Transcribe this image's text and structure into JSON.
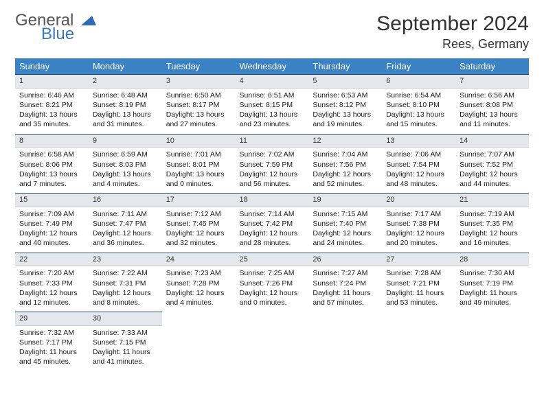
{
  "brand": {
    "part1": "General",
    "part2": "Blue",
    "part1_color": "#555555",
    "part2_color": "#3a79b7",
    "icon_color": "#2e6bb0"
  },
  "title": "September 2024",
  "location": "Rees, Germany",
  "colors": {
    "header_bg": "#3a82c4",
    "header_fg": "#ffffff",
    "daynum_bg": "#e4e8ec",
    "daynum_border_top": "#2b4a6a",
    "text": "#1a1a1a"
  },
  "weekdays": [
    "Sunday",
    "Monday",
    "Tuesday",
    "Wednesday",
    "Thursday",
    "Friday",
    "Saturday"
  ],
  "weeks": [
    [
      {
        "n": "1",
        "sr": "6:46 AM",
        "ss": "8:21 PM",
        "dh": "13",
        "dm": "35"
      },
      {
        "n": "2",
        "sr": "6:48 AM",
        "ss": "8:19 PM",
        "dh": "13",
        "dm": "31"
      },
      {
        "n": "3",
        "sr": "6:50 AM",
        "ss": "8:17 PM",
        "dh": "13",
        "dm": "27"
      },
      {
        "n": "4",
        "sr": "6:51 AM",
        "ss": "8:15 PM",
        "dh": "13",
        "dm": "23"
      },
      {
        "n": "5",
        "sr": "6:53 AM",
        "ss": "8:12 PM",
        "dh": "13",
        "dm": "19"
      },
      {
        "n": "6",
        "sr": "6:54 AM",
        "ss": "8:10 PM",
        "dh": "13",
        "dm": "15"
      },
      {
        "n": "7",
        "sr": "6:56 AM",
        "ss": "8:08 PM",
        "dh": "13",
        "dm": "11"
      }
    ],
    [
      {
        "n": "8",
        "sr": "6:58 AM",
        "ss": "8:06 PM",
        "dh": "13",
        "dm": "7"
      },
      {
        "n": "9",
        "sr": "6:59 AM",
        "ss": "8:03 PM",
        "dh": "13",
        "dm": "4"
      },
      {
        "n": "10",
        "sr": "7:01 AM",
        "ss": "8:01 PM",
        "dh": "13",
        "dm": "0"
      },
      {
        "n": "11",
        "sr": "7:02 AM",
        "ss": "7:59 PM",
        "dh": "12",
        "dm": "56"
      },
      {
        "n": "12",
        "sr": "7:04 AM",
        "ss": "7:56 PM",
        "dh": "12",
        "dm": "52"
      },
      {
        "n": "13",
        "sr": "7:06 AM",
        "ss": "7:54 PM",
        "dh": "12",
        "dm": "48"
      },
      {
        "n": "14",
        "sr": "7:07 AM",
        "ss": "7:52 PM",
        "dh": "12",
        "dm": "44"
      }
    ],
    [
      {
        "n": "15",
        "sr": "7:09 AM",
        "ss": "7:49 PM",
        "dh": "12",
        "dm": "40"
      },
      {
        "n": "16",
        "sr": "7:11 AM",
        "ss": "7:47 PM",
        "dh": "12",
        "dm": "36"
      },
      {
        "n": "17",
        "sr": "7:12 AM",
        "ss": "7:45 PM",
        "dh": "12",
        "dm": "32"
      },
      {
        "n": "18",
        "sr": "7:14 AM",
        "ss": "7:42 PM",
        "dh": "12",
        "dm": "28"
      },
      {
        "n": "19",
        "sr": "7:15 AM",
        "ss": "7:40 PM",
        "dh": "12",
        "dm": "24"
      },
      {
        "n": "20",
        "sr": "7:17 AM",
        "ss": "7:38 PM",
        "dh": "12",
        "dm": "20"
      },
      {
        "n": "21",
        "sr": "7:19 AM",
        "ss": "7:35 PM",
        "dh": "12",
        "dm": "16"
      }
    ],
    [
      {
        "n": "22",
        "sr": "7:20 AM",
        "ss": "7:33 PM",
        "dh": "12",
        "dm": "12"
      },
      {
        "n": "23",
        "sr": "7:22 AM",
        "ss": "7:31 PM",
        "dh": "12",
        "dm": "8"
      },
      {
        "n": "24",
        "sr": "7:23 AM",
        "ss": "7:28 PM",
        "dh": "12",
        "dm": "4"
      },
      {
        "n": "25",
        "sr": "7:25 AM",
        "ss": "7:26 PM",
        "dh": "12",
        "dm": "0"
      },
      {
        "n": "26",
        "sr": "7:27 AM",
        "ss": "7:24 PM",
        "dh": "11",
        "dm": "57"
      },
      {
        "n": "27",
        "sr": "7:28 AM",
        "ss": "7:21 PM",
        "dh": "11",
        "dm": "53"
      },
      {
        "n": "28",
        "sr": "7:30 AM",
        "ss": "7:19 PM",
        "dh": "11",
        "dm": "49"
      }
    ],
    [
      {
        "n": "29",
        "sr": "7:32 AM",
        "ss": "7:17 PM",
        "dh": "11",
        "dm": "45"
      },
      {
        "n": "30",
        "sr": "7:33 AM",
        "ss": "7:15 PM",
        "dh": "11",
        "dm": "41"
      },
      null,
      null,
      null,
      null,
      null
    ]
  ]
}
